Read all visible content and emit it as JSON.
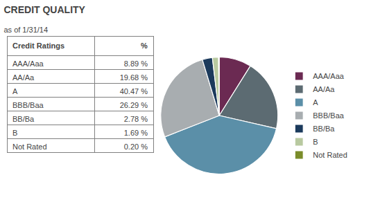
{
  "chart_data": {
    "type": "pie",
    "title": "CREDIT QUALITY",
    "subtitle": "as of 1/31/14",
    "table_header": [
      "Credit Ratings",
      "%"
    ],
    "categories": [
      "AAA/Aaa",
      "AA/Aa",
      "A",
      "BBB/Baa",
      "BB/Ba",
      "B",
      "Not Rated"
    ],
    "values": [
      8.89,
      19.68,
      40.47,
      26.29,
      2.78,
      1.69,
      0.2
    ],
    "value_labels": [
      "8.89 %",
      "19.68 %",
      "40.47 %",
      "26.29 %",
      "2.78 %",
      "1.69 %",
      "0.20 %"
    ],
    "colors": [
      "#6b2a52",
      "#5c6b72",
      "#5b8fa8",
      "#a8adb0",
      "#1b3a5c",
      "#b8c9a0",
      "#7a8c2a"
    ],
    "legend": "right"
  }
}
